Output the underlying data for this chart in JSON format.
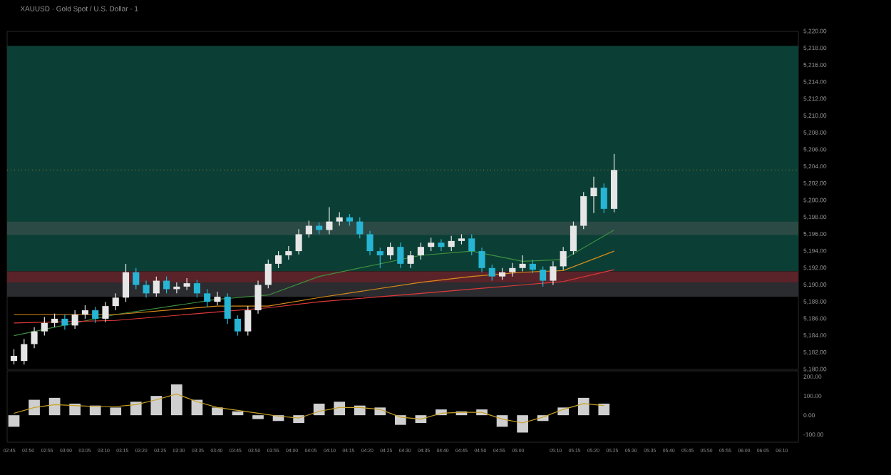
{
  "chart_data": [
    {
      "type": "candlestick",
      "title": "XAUUSD · Gold Spot / U.S. Dollar · 1",
      "x": [
        2.77,
        2.815,
        2.86,
        2.905,
        2.95,
        2.995,
        3.04,
        3.085,
        3.13,
        3.175,
        3.22,
        3.265,
        3.31,
        3.355,
        3.4,
        3.445,
        3.49,
        3.535,
        3.58,
        3.625,
        3.67,
        3.715,
        3.76,
        3.805,
        3.85,
        3.895,
        3.94,
        3.985,
        4.03,
        4.075,
        4.12,
        4.165,
        4.21,
        4.255,
        4.3,
        4.345,
        4.39,
        4.435,
        4.48,
        4.525,
        4.57,
        4.615,
        4.66,
        4.705,
        4.75,
        4.795,
        4.84,
        4.885,
        4.93,
        4.975,
        5.02,
        5.065,
        5.11,
        5.155,
        5.2,
        5.245,
        5.29,
        5.335,
        5.38,
        5.425
      ],
      "ohlc": [
        [
          5181.0,
          5182.4,
          5180.6,
          5181.6
        ],
        [
          5181.0,
          5183.6,
          5180.6,
          5183.0
        ],
        [
          5183.0,
          5185.0,
          5182.5,
          5184.5
        ],
        [
          5184.5,
          5186.2,
          5184.0,
          5185.5
        ],
        [
          5185.5,
          5186.6,
          5185.0,
          5186.0
        ],
        [
          5186.0,
          5186.5,
          5184.7,
          5185.2
        ],
        [
          5185.2,
          5187.0,
          5184.8,
          5186.5
        ],
        [
          5186.5,
          5187.6,
          5186.0,
          5187.0
        ],
        [
          5187.0,
          5187.4,
          5185.5,
          5186.0
        ],
        [
          5186.0,
          5188.0,
          5185.6,
          5187.5
        ],
        [
          5187.5,
          5189.0,
          5187.0,
          5188.5
        ],
        [
          5188.5,
          5192.5,
          5188.0,
          5191.5
        ],
        [
          5191.5,
          5192.0,
          5189.5,
          5190.0
        ],
        [
          5190.0,
          5190.5,
          5188.5,
          5189.0
        ],
        [
          5189.0,
          5191.0,
          5188.6,
          5190.5
        ],
        [
          5190.5,
          5191.0,
          5189.0,
          5189.5
        ],
        [
          5189.5,
          5190.3,
          5189.0,
          5189.8
        ],
        [
          5189.8,
          5190.8,
          5189.4,
          5190.2
        ],
        [
          5190.2,
          5190.6,
          5188.5,
          5189.0
        ],
        [
          5189.0,
          5189.5,
          5187.4,
          5188.0
        ],
        [
          5188.0,
          5189.2,
          5187.6,
          5188.6
        ],
        [
          5188.6,
          5189.0,
          5185.4,
          5186.0
        ],
        [
          5186.0,
          5186.4,
          5184.0,
          5184.5
        ],
        [
          5184.5,
          5187.5,
          5184.0,
          5187.0
        ],
        [
          5187.0,
          5190.5,
          5186.6,
          5190.0
        ],
        [
          5190.0,
          5193.0,
          5189.6,
          5192.5
        ],
        [
          5192.5,
          5194.0,
          5192.0,
          5193.5
        ],
        [
          5193.5,
          5194.6,
          5193.0,
          5194.0
        ],
        [
          5194.0,
          5196.6,
          5193.6,
          5196.0
        ],
        [
          5196.0,
          5197.6,
          5195.6,
          5197.0
        ],
        [
          5197.0,
          5197.4,
          5196.0,
          5196.5
        ],
        [
          5196.5,
          5199.2,
          5196.0,
          5197.5
        ],
        [
          5197.5,
          5198.6,
          5197.0,
          5198.0
        ],
        [
          5198.0,
          5198.4,
          5197.0,
          5197.5
        ],
        [
          5197.5,
          5198.0,
          5195.5,
          5196.0
        ],
        [
          5196.0,
          5196.4,
          5193.5,
          5194.0
        ],
        [
          5194.0,
          5194.4,
          5192.0,
          5193.5
        ],
        [
          5193.5,
          5195.0,
          5193.0,
          5194.5
        ],
        [
          5194.5,
          5195.0,
          5192.0,
          5192.5
        ],
        [
          5192.5,
          5194.0,
          5192.0,
          5193.5
        ],
        [
          5193.5,
          5195.0,
          5193.0,
          5194.5
        ],
        [
          5194.5,
          5195.6,
          5194.0,
          5195.0
        ],
        [
          5195.0,
          5195.4,
          5194.0,
          5194.5
        ],
        [
          5194.5,
          5195.8,
          5194.0,
          5195.2
        ],
        [
          5195.2,
          5196.0,
          5194.8,
          5195.5
        ],
        [
          5195.5,
          5196.0,
          5193.5,
          5194.0
        ],
        [
          5194.0,
          5194.4,
          5191.5,
          5192.0
        ],
        [
          5192.0,
          5192.4,
          5190.5,
          5191.0
        ],
        [
          5191.0,
          5192.0,
          5190.6,
          5191.5
        ],
        [
          5191.5,
          5192.6,
          5191.0,
          5192.0
        ],
        [
          5192.0,
          5193.5,
          5191.6,
          5192.5
        ],
        [
          5192.5,
          5193.0,
          5191.4,
          5191.8
        ],
        [
          5191.8,
          5192.2,
          5189.8,
          5190.5
        ],
        [
          5190.5,
          5192.8,
          5190.0,
          5192.2
        ],
        [
          5192.2,
          5194.5,
          5191.8,
          5194.0
        ],
        [
          5194.0,
          5197.5,
          5193.6,
          5197.0
        ],
        [
          5197.0,
          5201.0,
          5196.6,
          5200.5
        ],
        [
          5200.5,
          5202.8,
          5198.5,
          5201.5
        ],
        [
          5201.5,
          5202.0,
          5198.5,
          5199.0
        ],
        [
          5199.0,
          5205.5,
          5198.6,
          5203.6
        ]
      ],
      "series": [
        {
          "type": "line",
          "color": "#3f8f3f",
          "x": [
            2.77,
            3.22,
            3.67,
            3.895,
            4.12,
            4.57,
            4.795,
            5.02,
            5.2,
            5.425
          ],
          "values": [
            5184.0,
            5186.5,
            5188.3,
            5188.8,
            5191.0,
            5193.5,
            5194.0,
            5192.8,
            5193.0,
            5196.5
          ]
        },
        {
          "type": "line",
          "color": "#d98c1a",
          "x": [
            2.77,
            3.22,
            3.67,
            3.895,
            4.12,
            4.57,
            4.795,
            5.02,
            5.2,
            5.425
          ],
          "values": [
            5186.5,
            5186.5,
            5187.5,
            5187.5,
            5188.5,
            5190.3,
            5191.0,
            5191.5,
            5191.7,
            5194.0
          ]
        },
        {
          "type": "line",
          "color": "#e03a3a",
          "x": [
            2.77,
            3.22,
            3.67,
            3.895,
            4.12,
            4.57,
            4.795,
            5.02,
            5.2,
            5.425
          ],
          "values": [
            5185.5,
            5185.8,
            5186.8,
            5187.3,
            5188.0,
            5189.0,
            5189.5,
            5190.0,
            5190.4,
            5191.8
          ]
        }
      ],
      "xlim": [
        2.74,
        6.24
      ],
      "ylim": [
        5180,
        5220
      ],
      "yticks": [
        {
          "value": 5180,
          "label": "5,180.00"
        },
        {
          "value": 5182,
          "label": "5,182.00"
        },
        {
          "value": 5184,
          "label": "5,184.00"
        },
        {
          "value": 5186,
          "label": "5,186.00"
        },
        {
          "value": 5188,
          "label": "5,188.00"
        },
        {
          "value": 5190,
          "label": "5,190.00"
        },
        {
          "value": 5192,
          "label": "5,192.00"
        },
        {
          "value": 5194,
          "label": "5,194.00"
        },
        {
          "value": 5196,
          "label": "5,196.00"
        },
        {
          "value": 5198,
          "label": "5,198.00"
        },
        {
          "value": 5200,
          "label": "5,200.00"
        },
        {
          "value": 5202,
          "label": "5,202.00"
        },
        {
          "value": 5204,
          "label": "5,204.00"
        },
        {
          "value": 5206,
          "label": "5,206.00"
        },
        {
          "value": 5208,
          "label": "5,208.00"
        },
        {
          "value": 5210,
          "label": "5,210.00"
        },
        {
          "value": 5212,
          "label": "5,212.00"
        },
        {
          "value": 5214,
          "label": "5,214.00"
        },
        {
          "value": 5216,
          "label": "5,216.00"
        },
        {
          "value": 5218,
          "label": "5,218.00"
        },
        {
          "value": 5220,
          "label": "5,220.00"
        }
      ],
      "bands": [
        {
          "axis": "y",
          "from": 5191.6,
          "to": 5218.3,
          "color": "#0b3f35"
        },
        {
          "axis": "y",
          "from": 5190.3,
          "to": 5191.6,
          "color": "#5a2329"
        },
        {
          "axis": "y",
          "from": 5188.6,
          "to": 5190.3,
          "color": "#2b2c30"
        },
        {
          "axis": "y",
          "from": 5195.9,
          "to": 5197.5,
          "color": "#2b4a45"
        }
      ],
      "ref_lines": [
        {
          "axis": "y",
          "value": 5203.6,
          "color": "#b07a2a",
          "line_style": "dotted"
        }
      ],
      "tick_labels": "y"
    },
    {
      "type": "bar",
      "x": [
        2.77,
        2.86,
        2.95,
        3.04,
        3.13,
        3.22,
        3.31,
        3.4,
        3.49,
        3.58,
        3.67,
        3.76,
        3.85,
        3.94,
        4.03,
        4.12,
        4.21,
        4.3,
        4.39,
        4.48,
        4.57,
        4.66,
        4.75,
        4.84,
        4.93,
        5.02,
        5.11,
        5.2,
        5.29,
        5.38
      ],
      "series": [
        {
          "type": "bar",
          "color": "#cfcfcf",
          "values": [
            -60,
            80,
            90,
            60,
            50,
            40,
            70,
            100,
            160,
            80,
            40,
            20,
            -20,
            -30,
            -40,
            60,
            70,
            50,
            40,
            -50,
            -40,
            30,
            20,
            30,
            -60,
            -90,
            -30,
            40,
            90,
            60
          ]
        },
        {
          "type": "line",
          "color": "#c9a227",
          "values": [
            10,
            40,
            55,
            50,
            45,
            45,
            55,
            80,
            110,
            70,
            40,
            25,
            10,
            -5,
            -15,
            20,
            40,
            40,
            30,
            -10,
            -20,
            10,
            15,
            15,
            -20,
            -40,
            -10,
            30,
            60,
            50
          ]
        }
      ],
      "xlim": [
        2.74,
        6.24
      ],
      "xticks": [
        {
          "value": 2.75,
          "label": "02:45"
        },
        {
          "value": 2.8333,
          "label": "02:50"
        },
        {
          "value": 2.9167,
          "label": "02:55"
        },
        {
          "value": 3,
          "label": "03:00"
        },
        {
          "value": 3.0833,
          "label": "03:05"
        },
        {
          "value": 3.1667,
          "label": "03:10"
        },
        {
          "value": 3.25,
          "label": "03:15"
        },
        {
          "value": 3.3333,
          "label": "03:20"
        },
        {
          "value": 3.4167,
          "label": "03:25"
        },
        {
          "value": 3.5,
          "label": "03:30"
        },
        {
          "value": 3.5833,
          "label": "03:35"
        },
        {
          "value": 3.6667,
          "label": "03:40"
        },
        {
          "value": 3.75,
          "label": "03:45"
        },
        {
          "value": 3.8333,
          "label": "03:50"
        },
        {
          "value": 3.9167,
          "label": "03:55"
        },
        {
          "value": 4,
          "label": "04:00"
        },
        {
          "value": 4.0833,
          "label": "04:05"
        },
        {
          "value": 4.1667,
          "label": "04:10"
        },
        {
          "value": 4.25,
          "label": "04:15"
        },
        {
          "value": 4.3333,
          "label": "04:20"
        },
        {
          "value": 4.4167,
          "label": "04:25"
        },
        {
          "value": 4.5,
          "label": "04:30"
        },
        {
          "value": 4.5833,
          "label": "04:35"
        },
        {
          "value": 4.6667,
          "label": "04:40"
        },
        {
          "value": 4.75,
          "label": "04:45"
        },
        {
          "value": 4.8333,
          "label": "04:50"
        },
        {
          "value": 4.9167,
          "label": "04:55"
        },
        {
          "value": 5,
          "label": "05:00"
        },
        {
          "value": 5.1667,
          "label": "05:10"
        },
        {
          "value": 5.25,
          "label": "05:15"
        },
        {
          "value": 5.3333,
          "label": "05:20"
        },
        {
          "value": 5.4167,
          "label": "05:25"
        },
        {
          "value": 5.5,
          "label": "05:30"
        },
        {
          "value": 5.5833,
          "label": "05:35"
        },
        {
          "value": 5.6667,
          "label": "05:40"
        },
        {
          "value": 5.75,
          "label": "05:45"
        },
        {
          "value": 5.8333,
          "label": "05:50"
        },
        {
          "value": 5.9167,
          "label": "05:55"
        },
        {
          "value": 6,
          "label": "06:00"
        },
        {
          "value": 6.0833,
          "label": "06:05"
        },
        {
          "value": 6.1667,
          "label": "06:10"
        }
      ],
      "ylim": [
        -140,
        230
      ],
      "yticks": [
        {
          "value": 200,
          "label": "200.00"
        },
        {
          "value": 100,
          "label": "100.00"
        },
        {
          "value": 0,
          "label": "0.00"
        },
        {
          "value": -100,
          "label": "-100.00"
        }
      ]
    }
  ]
}
